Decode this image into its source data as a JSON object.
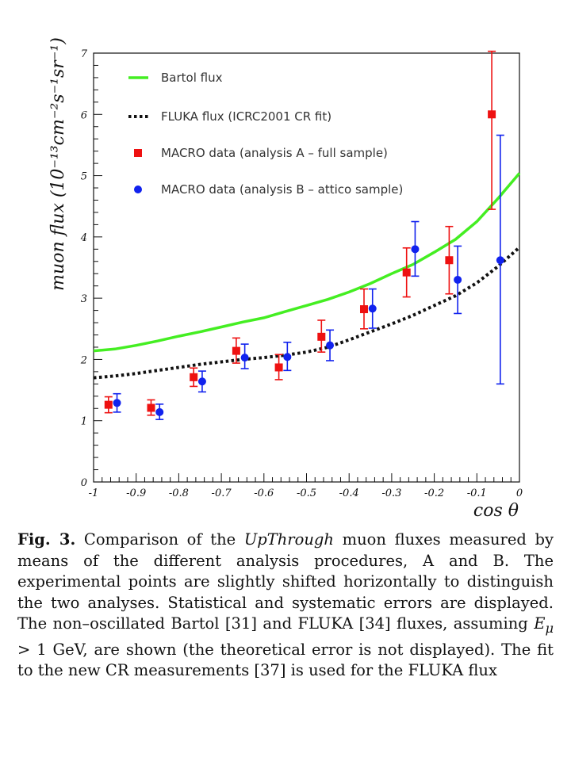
{
  "chart_data": {
    "type": "scatter",
    "xlabel": "cos θ",
    "ylabel": "muon flux (10⁻¹³cm⁻²s⁻¹sr⁻¹)",
    "xlim": [
      -1,
      0
    ],
    "ylim": [
      0,
      7
    ],
    "x_ticks": [
      "-1",
      "-0.9",
      "-0.8",
      "-0.7",
      "-0.6",
      "-0.5",
      "-0.4",
      "-0.3",
      "-0.2",
      "-0.1",
      "0"
    ],
    "y_ticks": [
      "0",
      "1",
      "2",
      "3",
      "4",
      "5",
      "6",
      "7"
    ],
    "grid": false,
    "legend_position": "top-left",
    "series": [
      {
        "name": "Bartol flux",
        "style": "line",
        "color": "#44ee22",
        "x": [
          -1.0,
          -0.95,
          -0.9,
          -0.85,
          -0.8,
          -0.75,
          -0.7,
          -0.65,
          -0.6,
          -0.55,
          -0.5,
          -0.45,
          -0.4,
          -0.35,
          -0.3,
          -0.25,
          -0.2,
          -0.15,
          -0.1,
          -0.05,
          0.0
        ],
        "y": [
          2.14,
          2.17,
          2.23,
          2.3,
          2.38,
          2.45,
          2.53,
          2.61,
          2.68,
          2.78,
          2.88,
          2.98,
          3.1,
          3.24,
          3.4,
          3.55,
          3.75,
          3.96,
          4.25,
          4.63,
          5.04
        ]
      },
      {
        "name": "FLUKA flux (ICRC2001 CR fit)",
        "style": "dotted",
        "color": "#111111",
        "x": [
          -1.0,
          -0.95,
          -0.9,
          -0.85,
          -0.8,
          -0.75,
          -0.7,
          -0.65,
          -0.6,
          -0.55,
          -0.5,
          -0.45,
          -0.4,
          -0.35,
          -0.3,
          -0.25,
          -0.2,
          -0.15,
          -0.1,
          -0.05,
          0.0
        ],
        "y": [
          1.7,
          1.73,
          1.77,
          1.82,
          1.87,
          1.92,
          1.96,
          2.0,
          2.03,
          2.07,
          2.12,
          2.2,
          2.32,
          2.45,
          2.58,
          2.72,
          2.88,
          3.04,
          3.25,
          3.52,
          3.83
        ]
      },
      {
        "name": "MACRO data (analysis A – full sample)",
        "style": "square",
        "color": "#ee1111",
        "x": [
          -0.965,
          -0.865,
          -0.765,
          -0.665,
          -0.565,
          -0.465,
          -0.365,
          -0.265,
          -0.165,
          -0.065
        ],
        "y": [
          1.26,
          1.21,
          1.71,
          2.14,
          1.87,
          2.37,
          2.82,
          3.42,
          3.62,
          6.0
        ],
        "err_low": [
          0.13,
          0.12,
          0.15,
          0.2,
          0.2,
          0.25,
          0.32,
          0.4,
          0.55,
          1.55
        ],
        "err_high": [
          0.13,
          0.13,
          0.15,
          0.21,
          0.21,
          0.27,
          0.33,
          0.4,
          0.55,
          1.03
        ]
      },
      {
        "name": "MACRO data (analysis B – attico sample)",
        "style": "circle",
        "color": "#1122ee",
        "x": [
          -0.945,
          -0.845,
          -0.745,
          -0.645,
          -0.545,
          -0.445,
          -0.345,
          -0.245,
          -0.145,
          -0.045
        ],
        "y": [
          1.29,
          1.14,
          1.64,
          2.03,
          2.04,
          2.23,
          2.83,
          3.8,
          3.3,
          3.62
        ],
        "err_low": [
          0.15,
          0.12,
          0.17,
          0.18,
          0.22,
          0.25,
          0.32,
          0.44,
          0.55,
          2.02
        ],
        "err_high": [
          0.15,
          0.13,
          0.17,
          0.22,
          0.24,
          0.25,
          0.32,
          0.45,
          0.55,
          2.04
        ]
      }
    ]
  },
  "caption": {
    "fig_label": "Fig. 3.",
    "t1": " Comparison of the ",
    "italic": "UpThrough",
    "t2": " muon fluxes measured by means of the different analysis procedures, A and B. The experimental points are slightly shifted horizontally to distinguish the two analyses. Statistical and systematic errors are displayed. The non–oscillated Bartol [31] and FLUKA [34] fluxes, assuming ",
    "math": "E",
    "math_sub": "μ",
    "math_rest": " > 1 GeV",
    "t3": ", are shown (the theoretical error is not displayed). The fit to the new CR measurements [37] is used for the FLUKA flux"
  }
}
